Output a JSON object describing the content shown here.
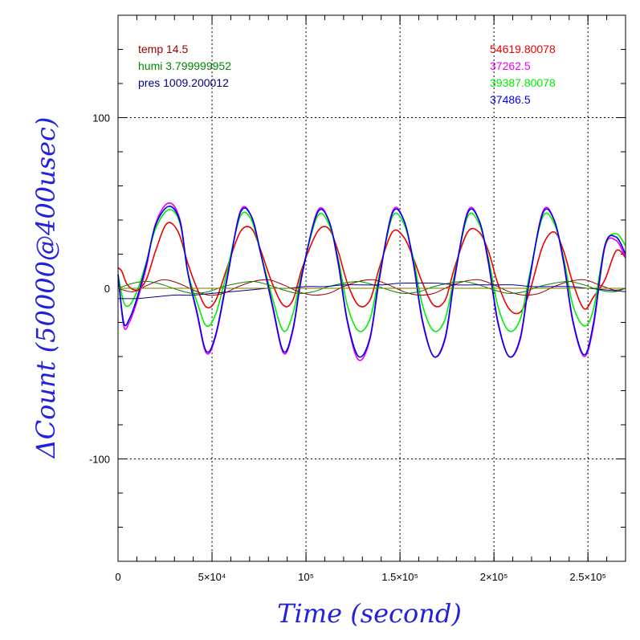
{
  "chart_data": {
    "type": "line",
    "xlabel": "Time (second)",
    "ylabel": "ΔCount (50000@400usec)",
    "xlim": [
      0,
      270000
    ],
    "ylim": [
      -160,
      160
    ],
    "grid": true,
    "x_ticks": [
      {
        "value": 0,
        "label": "0"
      },
      {
        "value": 50000,
        "label": "5×10⁴"
      },
      {
        "value": 100000,
        "label": "10⁵"
      },
      {
        "value": 150000,
        "label": "1.5×10⁵"
      },
      {
        "value": 200000,
        "label": "2×10⁵"
      },
      {
        "value": 250000,
        "label": "2.5×10⁵"
      }
    ],
    "y_ticks": [
      {
        "value": 100,
        "label": "100"
      },
      {
        "value": 0,
        "label": "0"
      },
      {
        "value": -100,
        "label": "-100"
      }
    ],
    "env_legend": [
      {
        "text": "temp 14.5",
        "color": "#990000"
      },
      {
        "text": "humi 3.799999952",
        "color": "#008800"
      },
      {
        "text": "pres 1009.200012",
        "color": "#000088"
      }
    ],
    "series_legend": [
      {
        "text": "54619.80078",
        "color": "#ee0000"
      },
      {
        "text": "37262.5",
        "color": "#ee00ee"
      },
      {
        "text": "39387.80078",
        "color": "#00ee00"
      },
      {
        "text": "37486.5",
        "color": "#0000ee"
      }
    ],
    "series": [
      {
        "color": "#ee0000",
        "x": [
          0,
          2000,
          5000,
          10000,
          15000,
          20000,
          26000,
          32000,
          37000,
          42000,
          47000,
          52000,
          58000,
          65000,
          71000,
          76000,
          82000,
          88000,
          93000,
          98000,
          106000,
          112000,
          117000,
          122000,
          128000,
          134000,
          139000,
          146000,
          152000,
          157000,
          162000,
          168000,
          174000,
          179000,
          186000,
          192000,
          197000,
          202000,
          208000,
          214000,
          219000,
          226000,
          232000,
          237000,
          242000,
          248000,
          253000,
          259000,
          265000,
          270000
        ],
        "y": [
          12,
          10,
          2,
          -1,
          5,
          22,
          38,
          33,
          15,
          0,
          -11,
          -7,
          12,
          33,
          35,
          22,
          3,
          -10,
          -7,
          12,
          33,
          35,
          22,
          3,
          -10,
          -7,
          12,
          33,
          30,
          18,
          3,
          -10,
          -7,
          12,
          33,
          33,
          22,
          3,
          -12,
          -14,
          -2,
          25,
          33,
          22,
          3,
          -12,
          -5,
          5,
          22,
          18
        ]
      },
      {
        "color": "#ee00ee",
        "x": [
          0,
          3000,
          6000,
          10000,
          15000,
          20000,
          27000,
          33000,
          37000,
          42000,
          47000,
          52000,
          58000,
          65000,
          71000,
          76000,
          82000,
          88000,
          93000,
          98000,
          106000,
          112000,
          117000,
          122000,
          128000,
          134000,
          139000,
          146000,
          152000,
          157000,
          162000,
          168000,
          174000,
          179000,
          186000,
          192000,
          197000,
          202000,
          208000,
          214000,
          219000,
          226000,
          232000,
          237000,
          242000,
          248000,
          253000,
          259000,
          265000,
          270000
        ],
        "y": [
          8,
          -22,
          -20,
          -8,
          12,
          38,
          50,
          40,
          10,
          -15,
          -38,
          -28,
          5,
          45,
          42,
          20,
          -10,
          -38,
          -25,
          8,
          45,
          40,
          15,
          -20,
          -42,
          -30,
          5,
          45,
          40,
          15,
          -20,
          -40,
          -30,
          5,
          45,
          40,
          15,
          -20,
          -40,
          -30,
          5,
          45,
          40,
          15,
          -20,
          -40,
          -22,
          24,
          28,
          18
        ]
      },
      {
        "color": "#00ee00",
        "x": [
          0,
          3000,
          6000,
          10000,
          15000,
          20000,
          27000,
          33000,
          37000,
          42000,
          47000,
          52000,
          58000,
          65000,
          71000,
          76000,
          82000,
          88000,
          93000,
          98000,
          106000,
          112000,
          117000,
          122000,
          128000,
          134000,
          139000,
          146000,
          152000,
          157000,
          162000,
          168000,
          174000,
          179000,
          186000,
          192000,
          197000,
          202000,
          208000,
          214000,
          219000,
          226000,
          232000,
          237000,
          242000,
          248000,
          253000,
          259000,
          265000,
          270000
        ],
        "y": [
          8,
          -8,
          -10,
          -2,
          15,
          35,
          46,
          38,
          10,
          -8,
          -22,
          -15,
          10,
          42,
          40,
          20,
          -5,
          -25,
          -15,
          10,
          42,
          38,
          18,
          -10,
          -25,
          -18,
          8,
          42,
          38,
          18,
          -10,
          -25,
          -18,
          8,
          42,
          38,
          18,
          -10,
          -25,
          -18,
          8,
          42,
          38,
          18,
          -10,
          -22,
          -12,
          25,
          32,
          25
        ]
      },
      {
        "color": "#0000ee",
        "x": [
          0,
          3000,
          6000,
          10000,
          15000,
          20000,
          27000,
          33000,
          37000,
          42000,
          47000,
          52000,
          58000,
          65000,
          71000,
          76000,
          82000,
          88000,
          93000,
          98000,
          106000,
          112000,
          117000,
          122000,
          128000,
          134000,
          139000,
          146000,
          152000,
          157000,
          162000,
          168000,
          174000,
          179000,
          186000,
          192000,
          197000,
          202000,
          208000,
          214000,
          219000,
          226000,
          232000,
          237000,
          242000,
          248000,
          253000,
          259000,
          265000,
          270000
        ],
        "y": [
          8,
          -20,
          -18,
          -6,
          14,
          37,
          48,
          39,
          10,
          -14,
          -37,
          -27,
          6,
          44,
          42,
          20,
          -9,
          -37,
          -24,
          9,
          44,
          40,
          16,
          -19,
          -40,
          -29,
          6,
          44,
          40,
          16,
          -19,
          -40,
          -29,
          6,
          44,
          40,
          16,
          -19,
          -40,
          -29,
          6,
          44,
          40,
          16,
          -19,
          -39,
          -20,
          25,
          30,
          20
        ]
      },
      {
        "color": "#990000",
        "x": [
          0,
          8000,
          16000,
          24000,
          32000,
          40000,
          48000,
          56000,
          64000,
          72000,
          80000,
          88000,
          96000,
          104000,
          112000,
          120000,
          128000,
          136000,
          144000,
          152000,
          160000,
          168000,
          176000,
          184000,
          192000,
          200000,
          208000,
          216000,
          224000,
          232000,
          240000,
          248000,
          256000,
          264000,
          270000
        ],
        "y": [
          0,
          -2,
          2,
          5,
          3,
          -1,
          -4,
          -3,
          1,
          4,
          5,
          2,
          -2,
          -4,
          -3,
          1,
          4,
          5,
          2,
          -2,
          -4,
          -3,
          1,
          4,
          5,
          2,
          -2,
          -4,
          -3,
          1,
          4,
          5,
          2,
          -1,
          0
        ]
      },
      {
        "color": "#008800",
        "x": [
          0,
          8000,
          16000,
          24000,
          32000,
          40000,
          48000,
          56000,
          64000,
          72000,
          80000,
          88000,
          96000,
          104000,
          112000,
          120000,
          128000,
          136000,
          144000,
          152000,
          160000,
          168000,
          176000,
          184000,
          192000,
          200000,
          208000,
          216000,
          224000,
          232000,
          240000,
          248000,
          256000,
          264000,
          270000
        ],
        "y": [
          0,
          3,
          4,
          2,
          -1,
          -3,
          -2,
          1,
          3,
          4,
          2,
          -1,
          -3,
          -2,
          1,
          3,
          4,
          2,
          -1,
          -3,
          -2,
          1,
          3,
          4,
          2,
          -1,
          -3,
          -2,
          1,
          3,
          4,
          2,
          -1,
          -2,
          0
        ]
      },
      {
        "color": "#000088",
        "x": [
          0,
          10000,
          20000,
          30000,
          40000,
          50000,
          60000,
          70000,
          80000,
          90000,
          100000,
          110000,
          120000,
          130000,
          140000,
          150000,
          160000,
          170000,
          180000,
          190000,
          200000,
          210000,
          220000,
          230000,
          240000,
          250000,
          260000,
          270000
        ],
        "y": [
          -6,
          -6,
          -5,
          -4,
          -4,
          -3,
          -2,
          -1,
          0,
          0,
          1,
          1,
          2,
          2,
          2,
          3,
          3,
          3,
          2,
          2,
          2,
          2,
          1,
          1,
          1,
          0,
          -1,
          -2
        ]
      },
      {
        "color": "#777700",
        "x": [
          0,
          270000
        ],
        "y": [
          0,
          0
        ]
      }
    ]
  }
}
